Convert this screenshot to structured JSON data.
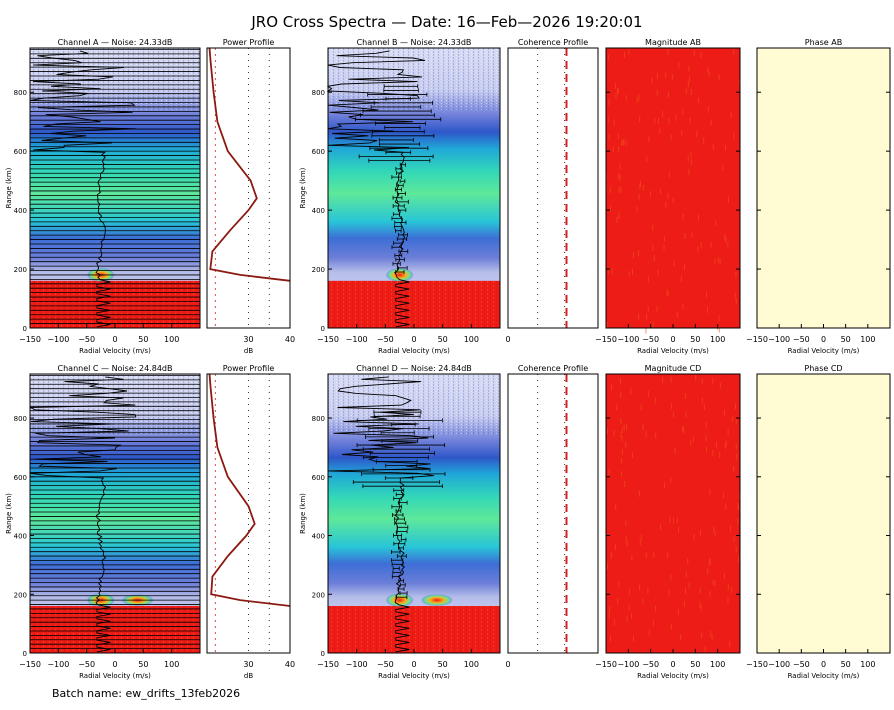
{
  "title": "JRO Cross Spectra — Date: 16—Feb—2026 19:20:01",
  "batch_label": "Batch name: ew_drifts_13feb2026",
  "colors": {
    "red_fill": "#ee1c17",
    "phase_fill": "#fffbd3",
    "profile_line": "#8b1a12",
    "coherence_line": "#d62020"
  },
  "chart_data": [
    {
      "type": "heatmap",
      "title": "Channel A — Noise: 24.33dB",
      "xlabel": "Radial Velocity (m/s)",
      "ylabel": "Range (km)",
      "xlim": [
        -150,
        150
      ],
      "ylim": [
        0,
        950
      ],
      "xticks": [
        "−150",
        "−100",
        "−50",
        "0",
        "50",
        "100"
      ],
      "yticks": [
        "0",
        "200",
        "400",
        "600",
        "800"
      ],
      "striped": true
    },
    {
      "type": "line",
      "title": "Power Profile",
      "xlabel": "dB",
      "xlim": [
        20,
        40
      ],
      "xticks": [
        "30",
        "40"
      ],
      "power_db_at_range_km": [
        [
          950,
          20.6
        ],
        [
          900,
          20.9
        ],
        [
          800,
          21.6
        ],
        [
          700,
          22.5
        ],
        [
          600,
          25.0
        ],
        [
          500,
          30.5
        ],
        [
          440,
          32.0
        ],
        [
          400,
          30.0
        ],
        [
          330,
          25.5
        ],
        [
          260,
          21.3
        ],
        [
          200,
          20.8
        ],
        [
          180,
          28.0
        ],
        [
          160,
          40.0
        ]
      ]
    },
    {
      "type": "heatmap",
      "title": "Channel B — Noise: 24.33dB",
      "xlabel": "Radial Velocity (m/s)",
      "ylabel": "Range (km)",
      "xlim": [
        -150,
        150
      ],
      "ylim": [
        0,
        950
      ],
      "xticks": [
        "−150",
        "−100",
        "−50",
        "0",
        "50",
        "100"
      ],
      "yticks": [
        "0",
        "200",
        "400",
        "600",
        "800"
      ]
    },
    {
      "type": "line",
      "title": "Coherence Profile",
      "xticks": [
        "0"
      ]
    },
    {
      "type": "heatmap",
      "title": "Magnitude AB",
      "xlabel": "Radial Velocity (m/s)",
      "xlim": [
        -150,
        150
      ],
      "xticks": [
        "−150",
        "−100",
        "−50",
        "0",
        "50",
        "100"
      ]
    },
    {
      "type": "heatmap",
      "title": "Phase AB",
      "xlabel": "Radial Velocity (m/s)",
      "xlim": [
        -150,
        150
      ],
      "xticks": [
        "−150",
        "−100",
        "−50",
        "0",
        "50",
        "100"
      ]
    },
    {
      "type": "heatmap",
      "title": "Channel C — Noise: 24.84dB",
      "xlabel": "Radial Velocity (m/s)",
      "ylabel": "Range (km)",
      "xlim": [
        -150,
        150
      ],
      "ylim": [
        0,
        950
      ],
      "xticks": [
        "−150",
        "−100",
        "−50",
        "0",
        "50",
        "100"
      ],
      "yticks": [
        "0",
        "200",
        "400",
        "600",
        "800"
      ],
      "striped": true
    },
    {
      "type": "line",
      "title": "Power Profile",
      "xlabel": "dB",
      "xlim": [
        20,
        40
      ],
      "xticks": [
        "30",
        "40"
      ],
      "power_db_at_range_km": [
        [
          950,
          20.6
        ],
        [
          900,
          20.9
        ],
        [
          800,
          21.6
        ],
        [
          700,
          22.5
        ],
        [
          600,
          25.0
        ],
        [
          500,
          30.0
        ],
        [
          440,
          31.5
        ],
        [
          400,
          29.5
        ],
        [
          330,
          25.0
        ],
        [
          260,
          21.3
        ],
        [
          200,
          21.0
        ],
        [
          180,
          28.0
        ],
        [
          160,
          40.0
        ]
      ]
    },
    {
      "type": "heatmap",
      "title": "Channel D — Noise: 24.84dB",
      "xlabel": "Radial Velocity (m/s)",
      "ylabel": "Range (km)",
      "xlim": [
        -150,
        150
      ],
      "ylim": [
        0,
        950
      ],
      "xticks": [
        "−150",
        "−100",
        "−50",
        "0",
        "50",
        "100"
      ],
      "yticks": [
        "0",
        "200",
        "400",
        "600",
        "800"
      ]
    },
    {
      "type": "line",
      "title": "Coherence Profile",
      "xticks": [
        "0"
      ]
    },
    {
      "type": "heatmap",
      "title": "Magnitude CD",
      "xlabel": "Radial Velocity (m/s)",
      "xlim": [
        -150,
        150
      ],
      "xticks": [
        "−150",
        "−100",
        "−50",
        "0",
        "50",
        "100"
      ]
    },
    {
      "type": "heatmap",
      "title": "Phase CD",
      "xlabel": "Radial Velocity (m/s)",
      "xlim": [
        -150,
        150
      ],
      "xticks": [
        "−150",
        "−100",
        "−50",
        "0",
        "50",
        "100"
      ]
    }
  ]
}
